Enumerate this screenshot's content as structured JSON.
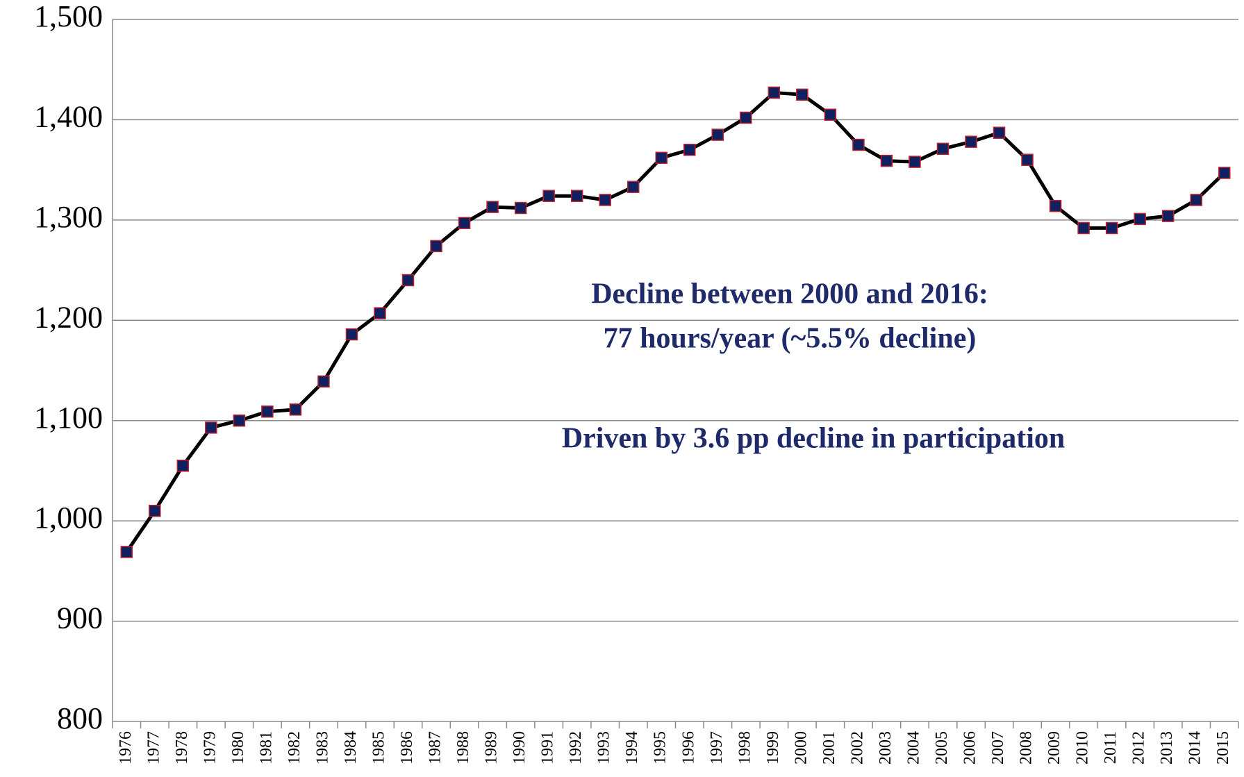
{
  "chart_data": {
    "type": "line",
    "categories": [
      "1976",
      "1977",
      "1978",
      "1979",
      "1980",
      "1981",
      "1982",
      "1983",
      "1984",
      "1985",
      "1986",
      "1987",
      "1988",
      "1989",
      "1990",
      "1991",
      "1992",
      "1993",
      "1994",
      "1995",
      "1996",
      "1997",
      "1998",
      "1999",
      "2000",
      "2001",
      "2002",
      "2003",
      "2004",
      "2005",
      "2006",
      "2007",
      "2008",
      "2009",
      "2010",
      "2011",
      "2012",
      "2013",
      "2014",
      "2015"
    ],
    "values": [
      969,
      1010,
      1055,
      1093,
      1100,
      1109,
      1111,
      1139,
      1186,
      1207,
      1240,
      1274,
      1297,
      1313,
      1312,
      1324,
      1324,
      1320,
      1333,
      1362,
      1370,
      1385,
      1402,
      1427,
      1425,
      1405,
      1375,
      1359,
      1358,
      1371,
      1378,
      1387,
      1360,
      1314,
      1292,
      1292,
      1301,
      1304,
      1320,
      1347
    ],
    "color": "#000000",
    "marker_color": "#102060",
    "marker_edge_color": "#c0202a",
    "ylim": [
      800,
      1500
    ],
    "yticks": [
      800,
      900,
      {
        "value": 1000,
        "label": "1,000"
      },
      {
        "value": 1100,
        "label": "1,100"
      },
      {
        "value": 1200,
        "label": "1,200"
      },
      {
        "value": 1300,
        "label": "1,300"
      },
      {
        "value": 1400,
        "label": "1,400"
      },
      {
        "value": 1500,
        "label": "1,500"
      }
    ],
    "grid": true,
    "annotations": [
      "Decline between 2000 and 2016:",
      "77 hours/year (~5.5% decline)",
      "Driven by 3.6 pp decline in participation"
    ]
  }
}
